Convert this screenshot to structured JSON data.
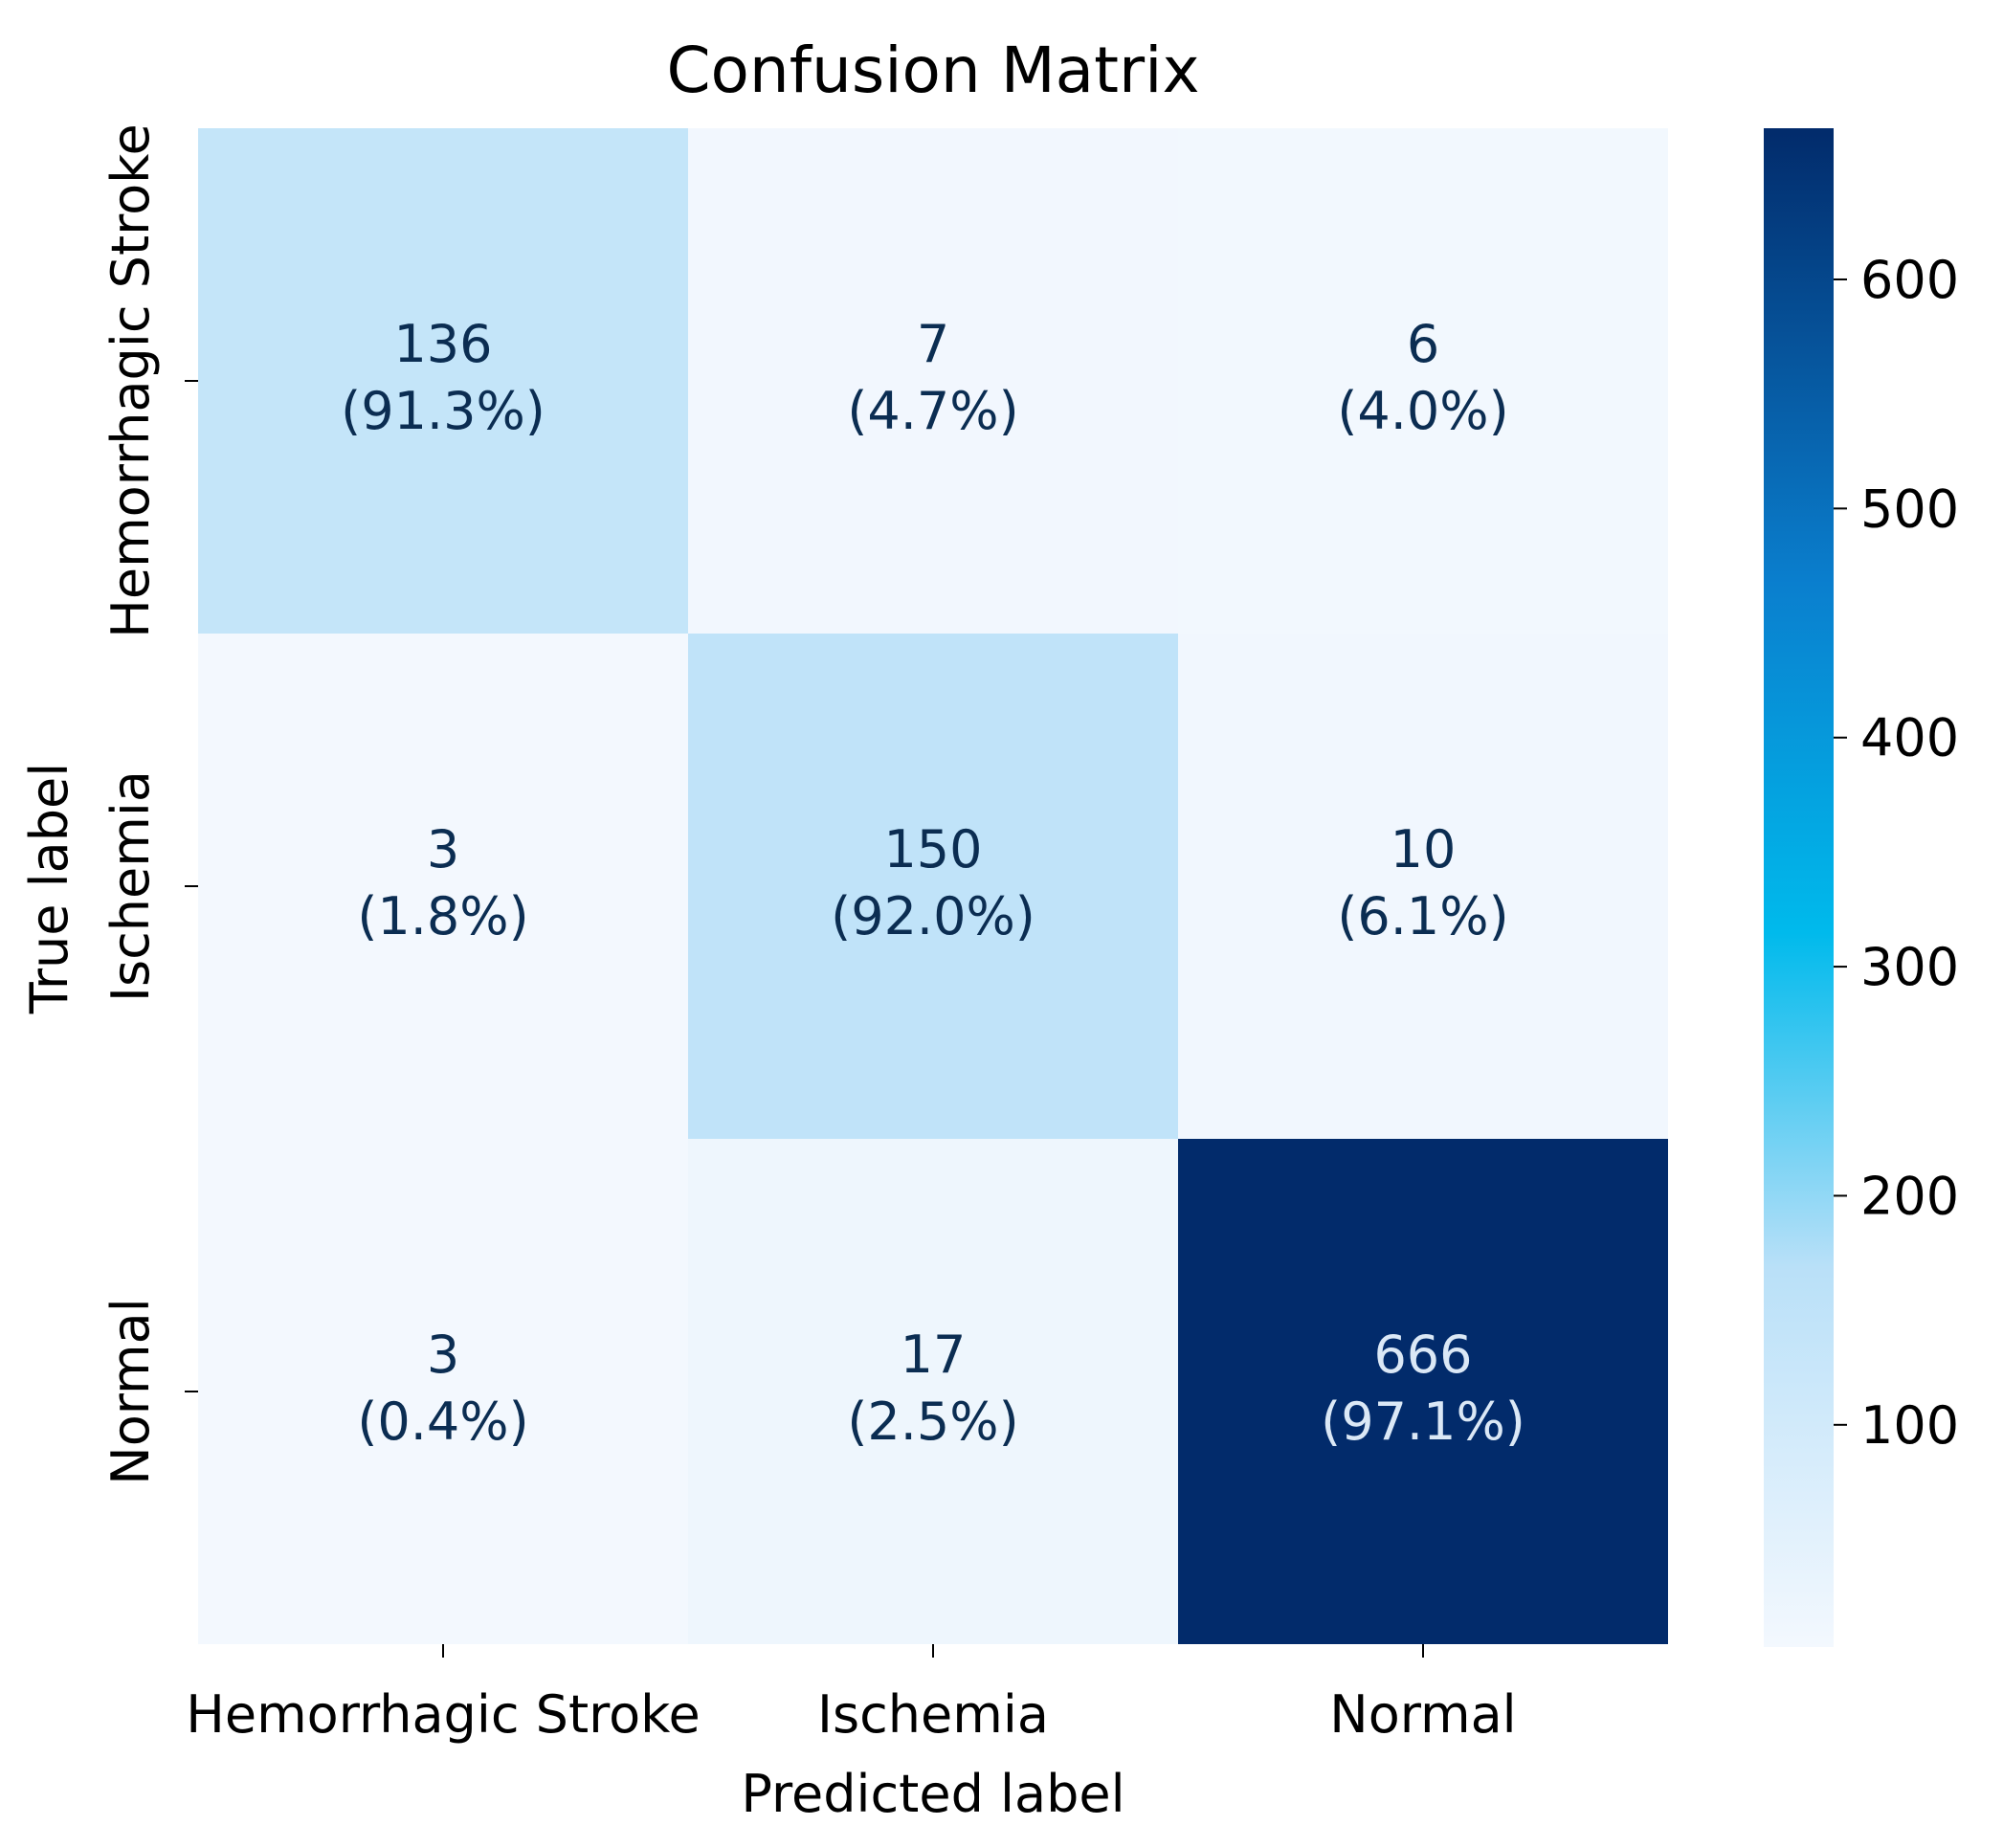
{
  "chart_data": {
    "type": "heatmap",
    "title": "Confusion Matrix",
    "xlabel": "Predicted label",
    "ylabel": "True label",
    "x_categories": [
      "Hemorrhagic Stroke",
      "Ischemia",
      "Normal"
    ],
    "y_categories": [
      "Hemorrhagic Stroke",
      "Ischemia",
      "Normal"
    ],
    "values": [
      [
        136,
        7,
        6
      ],
      [
        3,
        150,
        10
      ],
      [
        3,
        17,
        666
      ]
    ],
    "percentages": [
      [
        "(91.3%)",
        "(4.7%)",
        "(4.0%)"
      ],
      [
        "(1.8%)",
        "(92.0%)",
        "(6.1%)"
      ],
      [
        "(0.4%)",
        "(2.5%)",
        "(97.1%)"
      ]
    ],
    "colorbar": {
      "colormap": "Blues",
      "range": [
        3,
        666
      ],
      "ticks": [
        100,
        200,
        300,
        400,
        500,
        600
      ]
    }
  },
  "colors": {
    "cmap_low": "#f3f8fe",
    "cmap_mid_low": "#b9e0f8",
    "cmap_mid": "#00baec",
    "cmap_mid_high": "#0a7fce",
    "cmap_high": "#022b6b",
    "text_dark": "#0b2d52",
    "text_light": "#dbe8f6"
  }
}
